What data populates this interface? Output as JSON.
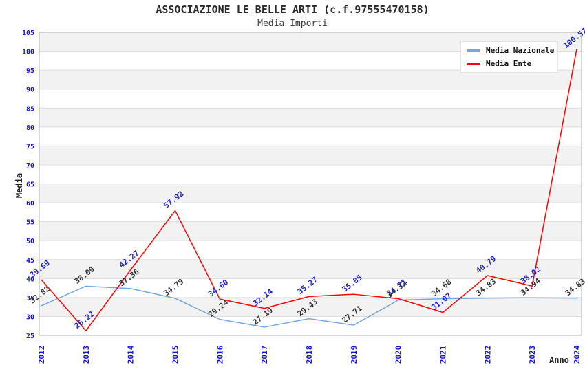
{
  "title": "ASSOCIAZIONE LE BELLE ARTI (c.f.97555470158)",
  "subtitle": "Media Importi",
  "axes": {
    "y_label": "Media",
    "x_label": "Anno",
    "y_ticks": [
      25,
      30,
      35,
      40,
      45,
      50,
      55,
      60,
      65,
      70,
      75,
      80,
      85,
      90,
      95,
      100,
      105
    ],
    "tick_color": "#1515cd"
  },
  "legend": {
    "items": [
      {
        "label": "Media Nazionale",
        "color": "#74a7dd"
      },
      {
        "label": "Media Ente",
        "color": "#ff0000"
      }
    ]
  },
  "chart_data": {
    "type": "line",
    "title": "ASSOCIAZIONE LE BELLE ARTI (c.f.97555470158)",
    "subtitle": "Media Importi",
    "xlabel": "Anno",
    "ylabel": "Media",
    "categories": [
      "2012",
      "2013",
      "2014",
      "2015",
      "2016",
      "2017",
      "2018",
      "2019",
      "2020",
      "2021",
      "2022",
      "2023",
      "2024"
    ],
    "ylim": [
      25,
      105
    ],
    "ytick_step": 5,
    "grid": true,
    "band_fill": "#f2f2f2",
    "grid_color": "#dcdcdc",
    "border_color": "#b2b2b2",
    "legend_position": "top-right",
    "series": [
      {
        "name": "Media Nazionale",
        "color": "#74a7dd",
        "label_color": "#333333",
        "values": [
          32.82,
          38.0,
          37.36,
          34.79,
          29.24,
          27.19,
          29.43,
          27.71,
          34.32,
          34.68,
          34.83,
          34.94,
          34.83
        ],
        "labels": [
          "32.82",
          "38.00",
          "37.36",
          "34.79",
          "29.24",
          "27.19",
          "29.43",
          "27.71",
          "34.32",
          "34.68",
          "34.83",
          "34.94",
          "34.83"
        ]
      },
      {
        "name": "Media Ente",
        "color": "#ff0000",
        "label_color": "#2222cc",
        "values": [
          39.69,
          26.22,
          42.27,
          57.92,
          34.6,
          32.14,
          35.27,
          35.85,
          34.71,
          31.07,
          40.79,
          38.02,
          100.57
        ],
        "labels": [
          "39.69",
          "26.22",
          "42.27",
          "57.92",
          "34.60",
          "32.14",
          "35.27",
          "35.85",
          "34.71",
          "31.07",
          "40.79",
          "38.02",
          "100.57"
        ]
      }
    ]
  }
}
